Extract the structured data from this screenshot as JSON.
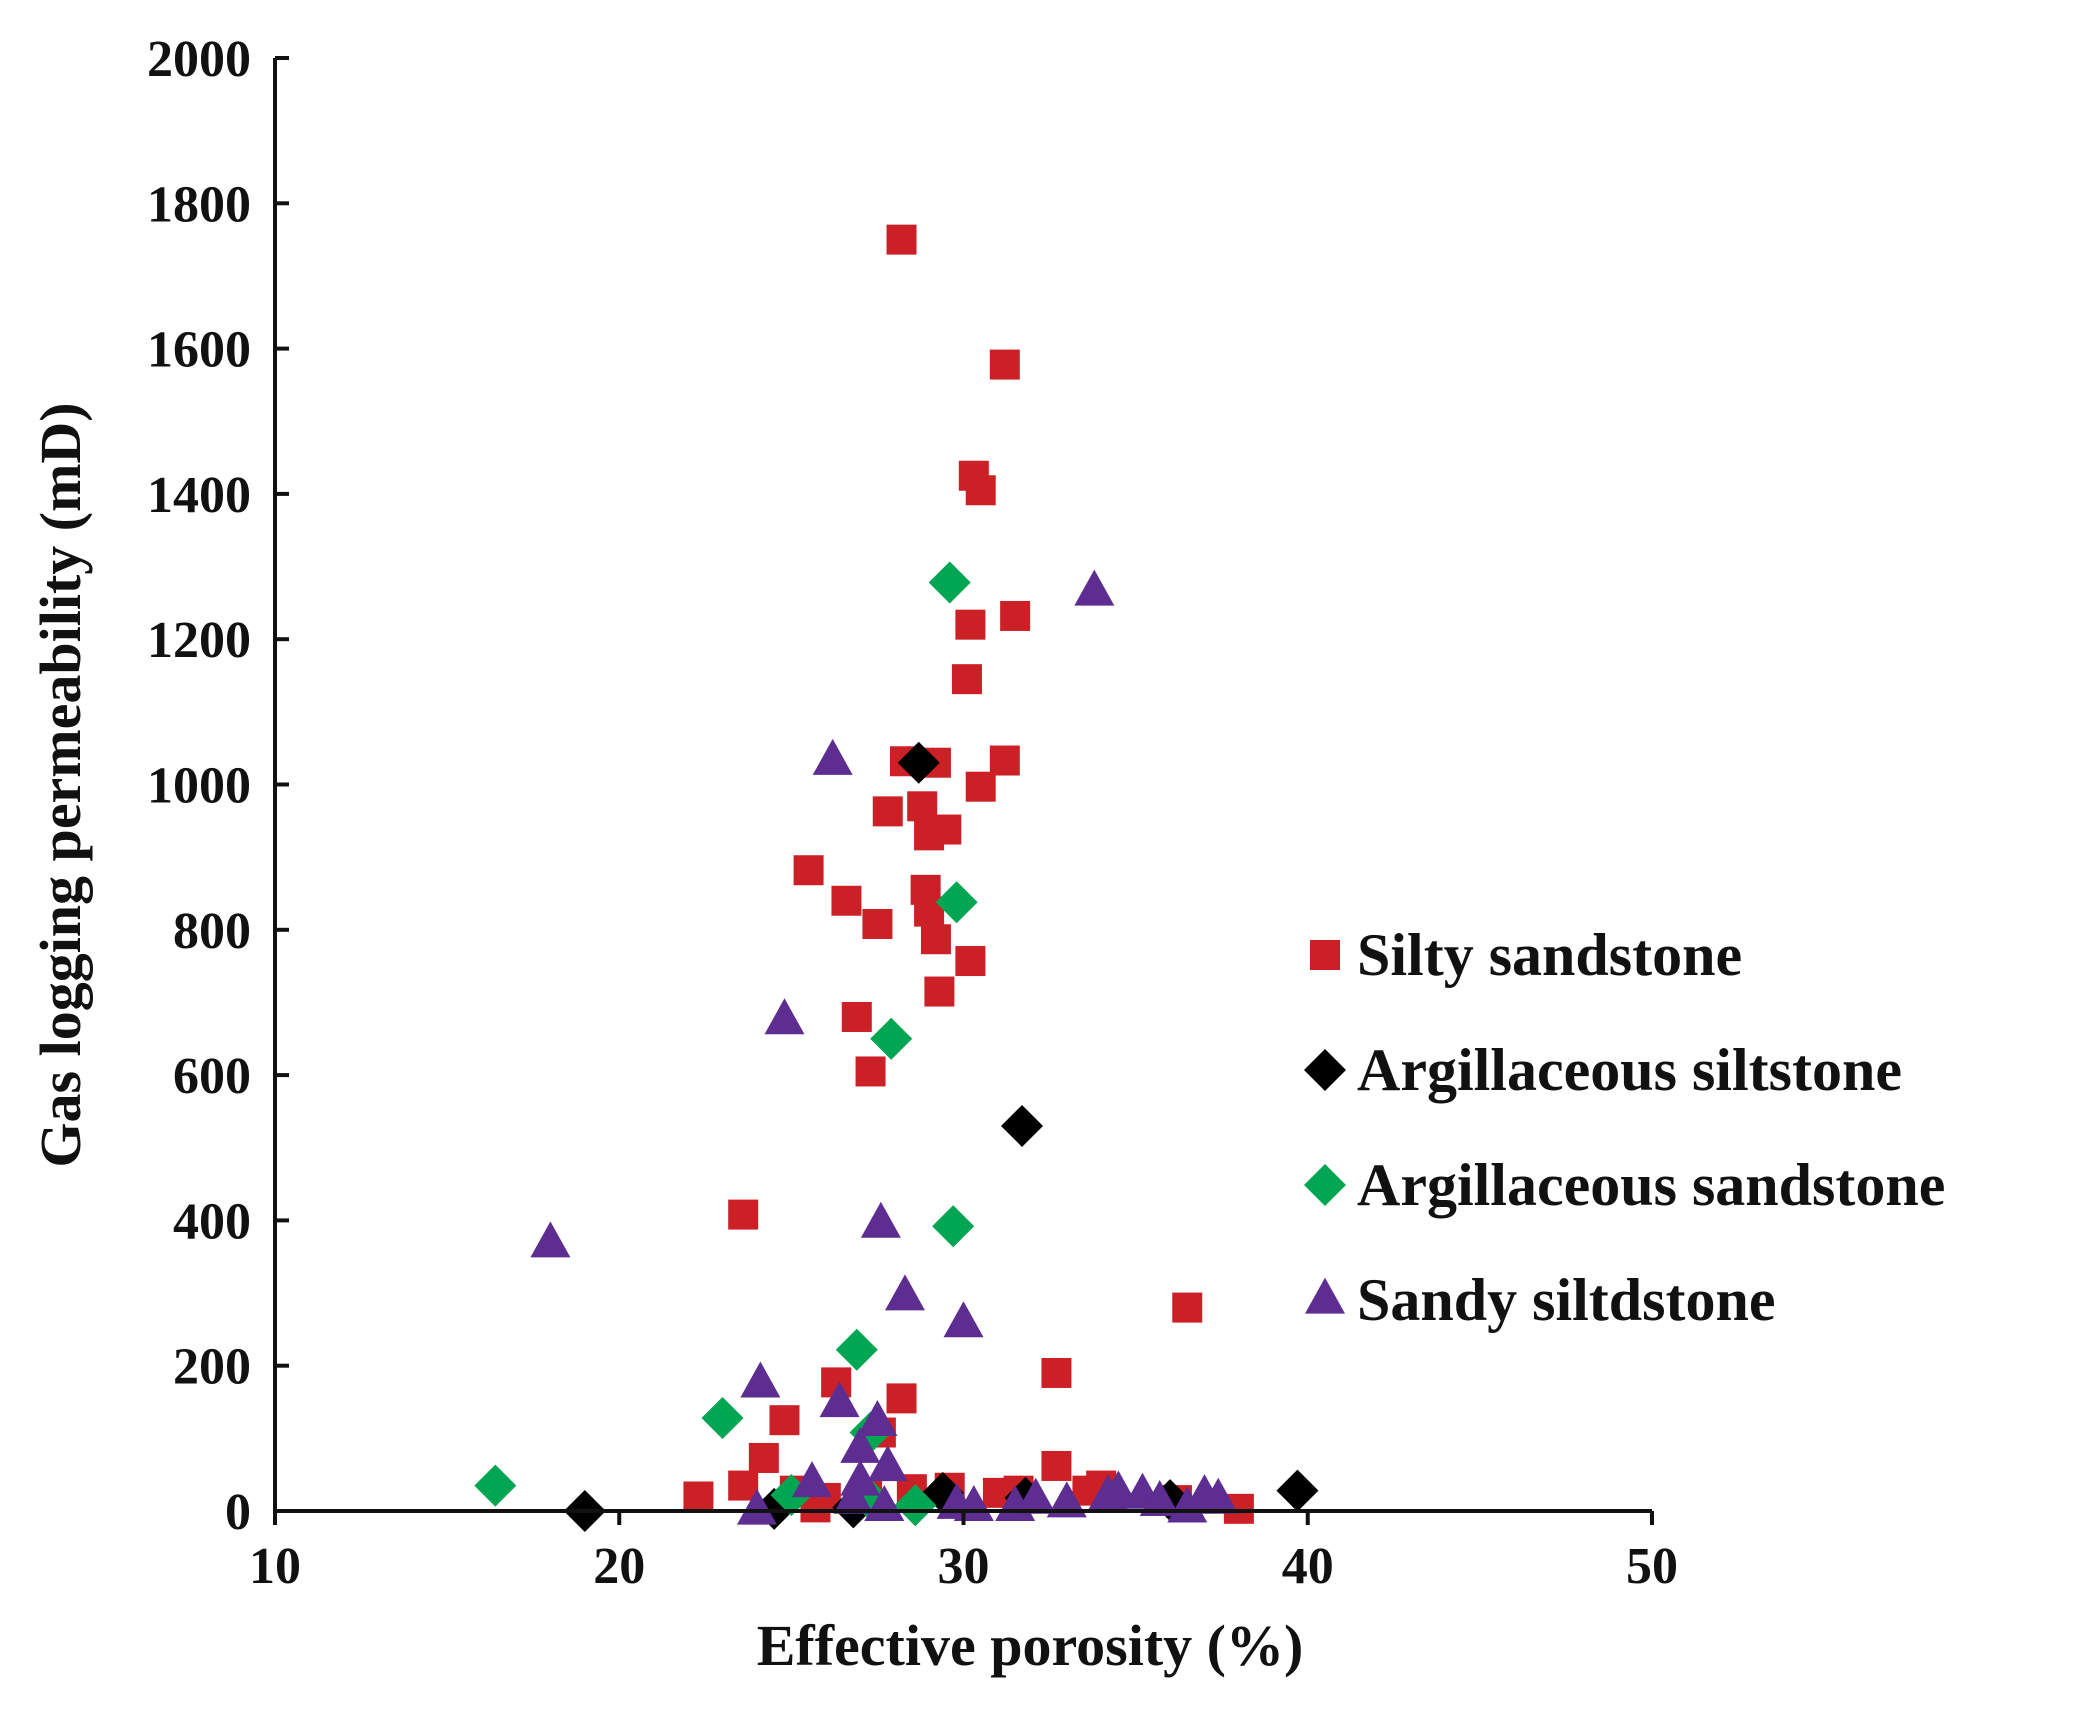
{
  "chart_data": {
    "type": "scatter",
    "title": "",
    "xlabel": "Effective porosity (%)",
    "ylabel": "Gas logging permeability (mD)",
    "xlim": [
      10,
      50
    ],
    "ylim": [
      0,
      2000
    ],
    "xticks": [
      10,
      20,
      30,
      40,
      50
    ],
    "yticks": [
      0,
      200,
      400,
      600,
      800,
      1000,
      1200,
      1400,
      1600,
      1800,
      2000
    ],
    "grid": false,
    "legend_position": "right",
    "series": [
      {
        "name": "Silty sandstone",
        "marker": "square",
        "color": "#cc2027",
        "points": [
          [
            28.2,
            1750
          ],
          [
            31.2,
            1578
          ],
          [
            30.3,
            1425
          ],
          [
            30.5,
            1405
          ],
          [
            31.5,
            1232
          ],
          [
            30.2,
            1220
          ],
          [
            30.1,
            1145
          ],
          [
            28.3,
            1032
          ],
          [
            29.2,
            1030
          ],
          [
            31.2,
            1033
          ],
          [
            30.5,
            997
          ],
          [
            28.8,
            970
          ],
          [
            27.8,
            963
          ],
          [
            29.5,
            938
          ],
          [
            29.0,
            930
          ],
          [
            25.5,
            882
          ],
          [
            28.9,
            855
          ],
          [
            26.6,
            840
          ],
          [
            29.0,
            825
          ],
          [
            27.5,
            808
          ],
          [
            29.2,
            787
          ],
          [
            30.2,
            757
          ],
          [
            29.3,
            715
          ],
          [
            26.9,
            680
          ],
          [
            27.3,
            605
          ],
          [
            23.6,
            408
          ],
          [
            36.5,
            280
          ],
          [
            32.7,
            190
          ],
          [
            26.3,
            177
          ],
          [
            28.2,
            155
          ],
          [
            24.8,
            125
          ],
          [
            27.6,
            108
          ],
          [
            24.2,
            73
          ],
          [
            32.7,
            62
          ],
          [
            23.6,
            35
          ],
          [
            22.3,
            20
          ],
          [
            25.1,
            28
          ],
          [
            26.0,
            18
          ],
          [
            25.7,
            5
          ],
          [
            27.2,
            22
          ],
          [
            28.5,
            30
          ],
          [
            29.6,
            32
          ],
          [
            31.0,
            25
          ],
          [
            31.6,
            28
          ],
          [
            33.6,
            28
          ],
          [
            34.0,
            35
          ],
          [
            36.2,
            15
          ],
          [
            38.0,
            3
          ]
        ]
      },
      {
        "name": "Argillaceous siltstone",
        "marker": "diamond",
        "color": "#000000",
        "points": [
          [
            28.7,
            1030
          ],
          [
            31.7,
            530
          ],
          [
            39.7,
            28
          ],
          [
            19.0,
            0
          ],
          [
            24.5,
            3
          ],
          [
            26.8,
            5
          ],
          [
            29.4,
            25
          ],
          [
            31.8,
            18
          ],
          [
            36.0,
            15
          ]
        ]
      },
      {
        "name": "Argillaceous sandstone",
        "marker": "diamond",
        "color": "#00a651",
        "points": [
          [
            29.6,
            1278
          ],
          [
            29.8,
            838
          ],
          [
            27.9,
            650
          ],
          [
            29.7,
            392
          ],
          [
            26.9,
            222
          ],
          [
            23.0,
            128
          ],
          [
            27.3,
            108
          ],
          [
            16.4,
            35
          ],
          [
            25.0,
            22
          ],
          [
            27.2,
            20
          ],
          [
            28.6,
            8
          ]
        ]
      },
      {
        "name": "Sandy siltdstone",
        "marker": "triangle",
        "color": "#5e2d91",
        "points": [
          [
            33.8,
            1265
          ],
          [
            26.2,
            1032
          ],
          [
            24.8,
            675
          ],
          [
            27.6,
            395
          ],
          [
            18.0,
            368
          ],
          [
            28.3,
            295
          ],
          [
            30.0,
            258
          ],
          [
            24.1,
            175
          ],
          [
            26.4,
            148
          ],
          [
            27.5,
            122
          ],
          [
            27.0,
            85
          ],
          [
            27.8,
            60
          ],
          [
            25.6,
            38
          ],
          [
            27.0,
            40
          ],
          [
            26.8,
            15
          ],
          [
            24.0,
            0
          ],
          [
            27.7,
            5
          ],
          [
            29.8,
            8
          ],
          [
            30.3,
            5
          ],
          [
            31.5,
            5
          ],
          [
            32.1,
            15
          ],
          [
            33.0,
            10
          ],
          [
            34.2,
            20
          ],
          [
            34.5,
            25
          ],
          [
            35.2,
            22
          ],
          [
            35.7,
            12
          ],
          [
            36.5,
            3
          ],
          [
            37.0,
            20
          ],
          [
            37.4,
            15
          ]
        ]
      }
    ]
  }
}
